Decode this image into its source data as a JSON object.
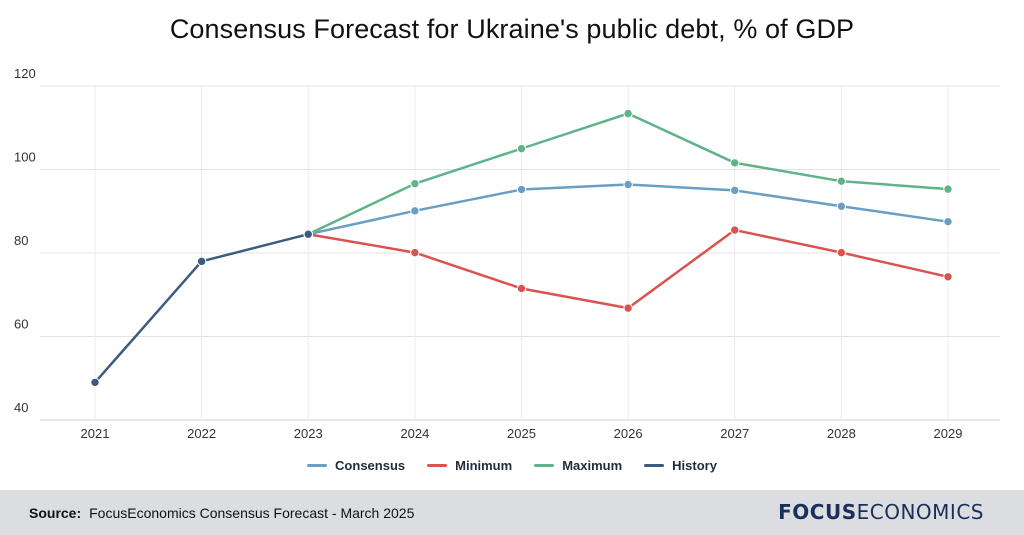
{
  "title": "Consensus Forecast for Ukraine's public debt, % of GDP",
  "source": {
    "label": "Source:",
    "text": "FocusEconomics Consensus Forecast - March 2025"
  },
  "logo": {
    "bold": "FOCUS",
    "regular": "ECONOMICS"
  },
  "chart_data": {
    "type": "line",
    "title": "Consensus Forecast for Ukraine's public debt, % of GDP",
    "x": [
      "2021",
      "2022",
      "2023",
      "2024",
      "2025",
      "2026",
      "2027",
      "2028",
      "2029"
    ],
    "y_ticks": [
      40,
      60,
      80,
      100,
      120
    ],
    "ylim": [
      40,
      120
    ],
    "grid": true,
    "legend_position": "bottom-center",
    "series": [
      {
        "name": "Consensus",
        "color": "#6a9fc4",
        "x": [
          "2023",
          "2024",
          "2025",
          "2026",
          "2027",
          "2028",
          "2029"
        ],
        "values": [
          84.5,
          90.1,
          95.2,
          96.4,
          95.0,
          91.2,
          87.5
        ]
      },
      {
        "name": "Minimum",
        "color": "#d9534f",
        "x": [
          "2023",
          "2024",
          "2025",
          "2026",
          "2027",
          "2028",
          "2029"
        ],
        "values": [
          84.5,
          80.1,
          71.5,
          66.8,
          85.5,
          80.1,
          74.3
        ]
      },
      {
        "name": "Maximum",
        "color": "#5fb389",
        "x": [
          "2023",
          "2024",
          "2025",
          "2026",
          "2027",
          "2028",
          "2029"
        ],
        "values": [
          84.5,
          96.6,
          105.0,
          113.4,
          101.6,
          97.2,
          95.3
        ]
      },
      {
        "name": "History",
        "color": "#3d5a80",
        "x": [
          "2021",
          "2022",
          "2023"
        ],
        "values": [
          49.0,
          78.0,
          84.5
        ]
      }
    ]
  }
}
